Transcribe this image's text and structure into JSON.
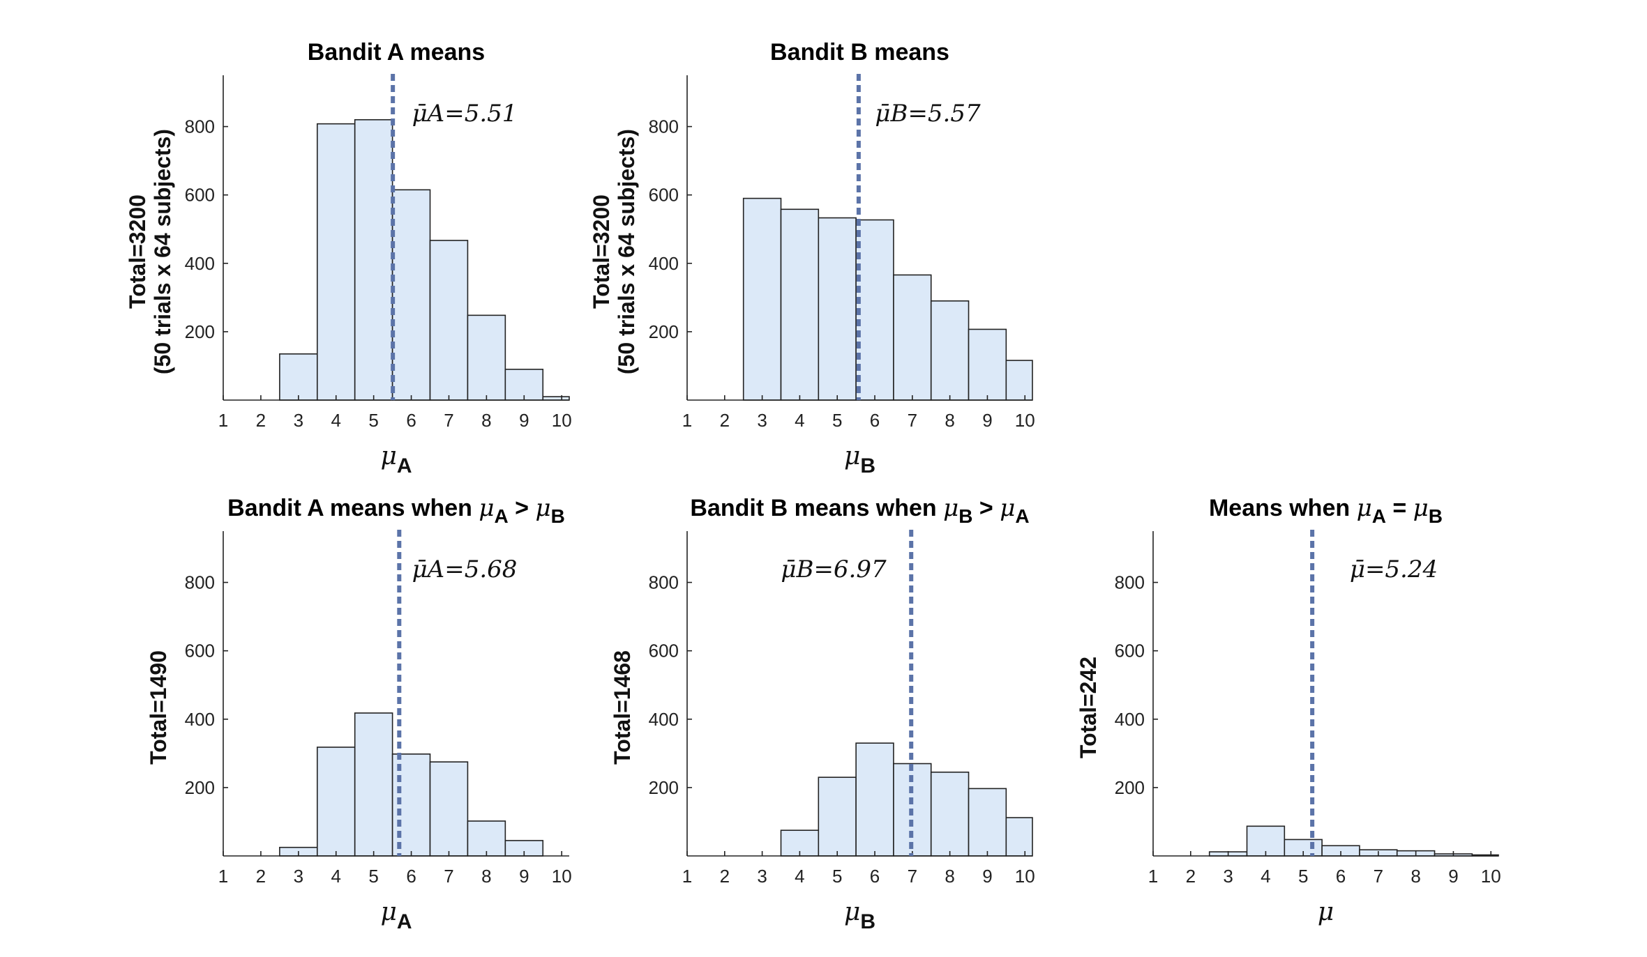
{
  "chart_data": [
    {
      "type": "bar",
      "title": "Bandit A means",
      "ylabel_lines": [
        "Total=3200",
        "(50 trials x 64 subjects)"
      ],
      "xlabel_symbol": "μ",
      "xlabel_sub": "A",
      "annotation": "μ̄A=5.51",
      "annotation_position": "top-right",
      "mean": 5.51,
      "xlim": [
        1,
        10.2
      ],
      "ylim": [
        0,
        950
      ],
      "x_ticks": [
        1,
        2,
        3,
        4,
        5,
        6,
        7,
        8,
        9,
        10
      ],
      "y_ticks": [
        200,
        400,
        600,
        800
      ],
      "bins": [
        1,
        2,
        3,
        4,
        5,
        6,
        7,
        8,
        9,
        10
      ],
      "values": [
        0,
        0,
        135,
        808,
        820,
        615,
        467,
        248,
        90,
        10
      ]
    },
    {
      "type": "bar",
      "title": "Bandit B means",
      "ylabel_lines": [
        "Total=3200",
        "(50 trials x 64 subjects)"
      ],
      "xlabel_symbol": "μ",
      "xlabel_sub": "B",
      "annotation": "μ̄B=5.57",
      "annotation_position": "top-right",
      "mean": 5.57,
      "xlim": [
        1,
        10.2
      ],
      "ylim": [
        0,
        950
      ],
      "x_ticks": [
        1,
        2,
        3,
        4,
        5,
        6,
        7,
        8,
        9,
        10
      ],
      "y_ticks": [
        200,
        400,
        600,
        800
      ],
      "bins": [
        1,
        2,
        3,
        4,
        5,
        6,
        7,
        8,
        9,
        10
      ],
      "values": [
        0,
        0,
        590,
        558,
        533,
        527,
        366,
        290,
        207,
        116
      ]
    },
    {
      "type": "bar",
      "title": "Bandit A means when μA > μB",
      "title_text": "Bandit A means when ",
      "title_sym1": "μ",
      "title_sub1": "A",
      "title_op": " > ",
      "title_sym2": "μ",
      "title_sub2": "B",
      "ylabel_lines": [
        "Total=1490"
      ],
      "xlabel_symbol": "μ",
      "xlabel_sub": "A",
      "annotation": "μ̄A=5.68",
      "annotation_position": "top-right",
      "mean": 5.68,
      "xlim": [
        1,
        10.2
      ],
      "ylim": [
        0,
        950
      ],
      "x_ticks": [
        1,
        2,
        3,
        4,
        5,
        6,
        7,
        8,
        9,
        10
      ],
      "y_ticks": [
        200,
        400,
        600,
        800
      ],
      "bins": [
        1,
        2,
        3,
        4,
        5,
        6,
        7,
        8,
        9,
        10
      ],
      "values": [
        0,
        0,
        25,
        318,
        418,
        298,
        275,
        102,
        45,
        0
      ]
    },
    {
      "type": "bar",
      "title": "Bandit B means when μB > μA",
      "title_text": "Bandit B means when ",
      "title_sym1": "μ",
      "title_sub1": "B",
      "title_op": " > ",
      "title_sym2": "μ",
      "title_sub2": "A",
      "ylabel_lines": [
        "Total=1468"
      ],
      "xlabel_symbol": "μ",
      "xlabel_sub": "B",
      "annotation": "μ̄B=6.97",
      "annotation_position": "top-left",
      "mean": 6.97,
      "xlim": [
        1,
        10.2
      ],
      "ylim": [
        0,
        950
      ],
      "x_ticks": [
        1,
        2,
        3,
        4,
        5,
        6,
        7,
        8,
        9,
        10
      ],
      "y_ticks": [
        200,
        400,
        600,
        800
      ],
      "bins": [
        1,
        2,
        3,
        4,
        5,
        6,
        7,
        8,
        9,
        10
      ],
      "values": [
        0,
        0,
        0,
        75,
        230,
        330,
        270,
        245,
        197,
        112
      ]
    },
    {
      "type": "bar",
      "title": "Means when μA = μB",
      "title_text": "Means when ",
      "title_sym1": "μ",
      "title_sub1": "A",
      "title_op": " = ",
      "title_sym2": "μ",
      "title_sub2": "B",
      "ylabel_lines": [
        "Total=242"
      ],
      "xlabel_symbol": "μ",
      "xlabel_sub": "",
      "annotation": "μ̄=5.24",
      "annotation_position": "top-right",
      "mean": 5.24,
      "xlim": [
        1,
        10.2
      ],
      "ylim": [
        0,
        950
      ],
      "x_ticks": [
        1,
        2,
        3,
        4,
        5,
        6,
        7,
        8,
        9,
        10
      ],
      "y_ticks": [
        200,
        400,
        600,
        800
      ],
      "bins": [
        1,
        2,
        3,
        4,
        5,
        6,
        7,
        8,
        9,
        10
      ],
      "values": [
        0,
        0,
        12,
        87,
        48,
        30,
        18,
        15,
        6,
        3
      ]
    }
  ]
}
